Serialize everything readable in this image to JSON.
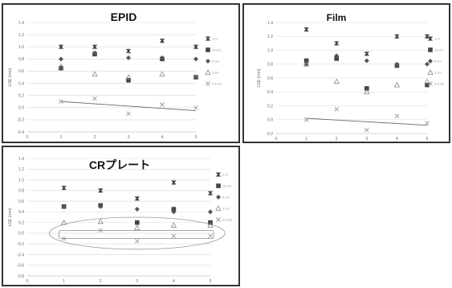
{
  "chart_data": [
    {
      "type": "scatter",
      "title": "EPID",
      "ylabel": "LGE (mm)",
      "xlabel": "",
      "x": [
        1,
        2,
        3,
        4,
        5
      ],
      "xlim": [
        0,
        5
      ],
      "ylim": [
        -0.4,
        1.4
      ],
      "yticks": [
        "1.4",
        "1.2",
        "1.0",
        "0.8",
        "0.6",
        "0.4",
        "0.2",
        "0.0",
        "-0.2",
        "-0.4"
      ],
      "xticks": [
        "0",
        "1",
        "2",
        "3",
        "4",
        "5"
      ],
      "legend_position": "right",
      "series": [
        {
          "name": "1 m",
          "marker": "star",
          "values": [
            1.0,
            1.0,
            0.93,
            1.1,
            1.0
          ]
        },
        {
          "name": "10 cm",
          "marker": "square",
          "values": [
            0.65,
            0.88,
            0.45,
            0.8,
            0.5
          ]
        },
        {
          "name": "5 cm",
          "marker": "diamond",
          "values": [
            0.8,
            0.9,
            0.82,
            0.82,
            0.8
          ]
        },
        {
          "name": "1 cm",
          "marker": "triangle",
          "values": [
            0.68,
            0.55,
            0.5,
            0.55,
            0.5
          ]
        },
        {
          "name": "0.5 cm",
          "marker": "x",
          "values": [
            0.1,
            0.15,
            -0.1,
            0.05,
            0.0
          ]
        }
      ],
      "trendline": {
        "x": [
          1,
          5
        ],
        "y": [
          0.1,
          -0.05
        ]
      }
    },
    {
      "type": "scatter",
      "title": "Film",
      "ylabel": "LGE (mm)",
      "xlabel": "",
      "x": [
        1,
        2,
        3,
        4,
        5
      ],
      "xlim": [
        0,
        5
      ],
      "ylim": [
        -0.2,
        1.4
      ],
      "yticks": [
        "1.4",
        "1.2",
        "1.0",
        "0.8",
        "0.6",
        "0.4",
        "0.2",
        "0.0",
        "-0.2"
      ],
      "xticks": [
        "0",
        "1",
        "2",
        "3",
        "4",
        "5"
      ],
      "legend_position": "right",
      "series": [
        {
          "name": "1 m",
          "marker": "star",
          "values": [
            1.3,
            1.1,
            0.95,
            1.2,
            1.2
          ]
        },
        {
          "name": "10 cm",
          "marker": "square",
          "values": [
            0.85,
            0.88,
            0.45,
            0.78,
            0.5
          ]
        },
        {
          "name": "5 cm",
          "marker": "diamond",
          "values": [
            0.8,
            0.92,
            0.85,
            0.8,
            0.8
          ]
        },
        {
          "name": "1 cm",
          "marker": "triangle",
          "values": [
            0.8,
            0.55,
            0.4,
            0.5,
            0.55
          ]
        },
        {
          "name": "0.5 cm",
          "marker": "x",
          "values": [
            0.0,
            0.15,
            -0.15,
            0.05,
            -0.05
          ]
        }
      ],
      "trendline": {
        "x": [
          1,
          5
        ],
        "y": [
          0.02,
          -0.08
        ]
      }
    },
    {
      "type": "scatter",
      "title": "CRプレート",
      "ylabel": "LGE (mm)",
      "xlabel": "",
      "x": [
        1,
        2,
        3,
        4,
        5
      ],
      "xlim": [
        0,
        5
      ],
      "ylim": [
        -0.8,
        1.4
      ],
      "yticks": [
        "1.4",
        "1.2",
        "1.0",
        "0.8",
        "0.6",
        "0.4",
        "0.2",
        "0.0",
        "-0.2",
        "-0.4",
        "-0.6",
        "-0.8"
      ],
      "xticks": [
        "0",
        "1",
        "2",
        "3",
        "4",
        "5"
      ],
      "legend_position": "right",
      "series": [
        {
          "name": "1 m",
          "marker": "star",
          "values": [
            0.85,
            0.8,
            0.65,
            0.95,
            0.75
          ]
        },
        {
          "name": "10 cm",
          "marker": "square",
          "values": [
            0.5,
            0.52,
            0.2,
            0.45,
            0.2
          ]
        },
        {
          "name": "5 cm",
          "marker": "diamond",
          "values": [
            0.5,
            0.5,
            0.45,
            0.4,
            0.4
          ]
        },
        {
          "name": "1 cm",
          "marker": "triangle",
          "values": [
            0.2,
            0.22,
            0.1,
            0.15,
            0.15
          ]
        },
        {
          "name": "0.5 cm",
          "marker": "x",
          "values": [
            -0.1,
            0.05,
            -0.15,
            -0.05,
            -0.05
          ]
        }
      ],
      "annotation": {
        "shape": "ellipse",
        "center": [
          3,
          0.0
        ],
        "radius_x": 2.4,
        "radius_y": 0.3
      }
    }
  ]
}
